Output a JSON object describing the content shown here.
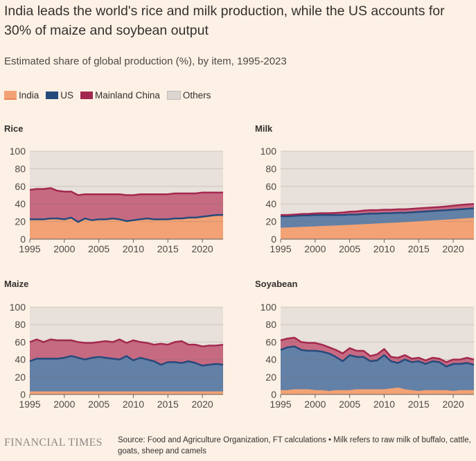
{
  "title": "India leads the world's rice and milk production, while the US accounts for 30% of maize and soybean output",
  "subtitle": "Estimated share of global production (%), by item, 1995-2023",
  "legend": [
    {
      "label": "India",
      "color": "#f2a274",
      "line": "#f2a274"
    },
    {
      "label": "US",
      "color": "#6380a6",
      "line": "#264a7c"
    },
    {
      "label": "Mainland China",
      "color": "#c66a82",
      "line": "#a3284f"
    },
    {
      "label": "Others",
      "color": "#e8e0da",
      "line": "#e8e0da"
    }
  ],
  "footer": {
    "logo": "FINANCIAL TIMES",
    "source": "Source: Food and Agriculture Organization, FT calculations • Milk refers to raw milk of buffalo, cattle, goats, sheep and camels"
  },
  "chart_data": [
    {
      "type": "area",
      "stacked": true,
      "title": "Rice",
      "x_start": 1995,
      "x_end": 2023,
      "ylim": [
        0,
        100
      ],
      "yticks": [
        "0",
        "20",
        "40",
        "60",
        "80",
        "100"
      ],
      "xticks": [
        "1995",
        "2000",
        "2005",
        "2010",
        "2015",
        "2020"
      ],
      "series": [
        {
          "name": "India",
          "values": [
            21,
            21,
            21,
            22,
            22,
            21,
            23,
            18,
            22,
            20,
            21,
            21,
            22,
            21,
            19,
            20,
            21,
            22,
            21,
            21,
            21,
            22,
            22,
            23,
            23,
            24,
            25,
            26,
            26
          ]
        },
        {
          "name": "US",
          "values": [
            1.5,
            1.5,
            1.5,
            1.5,
            1.5,
            1.5,
            1.5,
            1.5,
            1.5,
            1.5,
            1.5,
            1.5,
            1.5,
            1.5,
            1.5,
            1.5,
            1.5,
            1.5,
            1.5,
            1.5,
            1.5,
            1.5,
            1.5,
            1.5,
            1.5,
            1.5,
            1.5,
            1.5,
            1.5
          ]
        },
        {
          "name": "Mainland China",
          "values": [
            33.5,
            34.5,
            34.5,
            34.5,
            31.5,
            31.5,
            29.5,
            30.5,
            27.5,
            29.5,
            28.5,
            28.5,
            27.5,
            28.5,
            29.5,
            28.5,
            28.5,
            27.5,
            28.5,
            28.5,
            28.5,
            28.5,
            28.5,
            27.5,
            27.5,
            27.5,
            26.5,
            25.5,
            25.5
          ]
        }
      ]
    },
    {
      "type": "area",
      "stacked": true,
      "title": "Milk",
      "x_start": 1995,
      "x_end": 2023,
      "ylim": [
        0,
        100
      ],
      "yticks": [
        "0",
        "20",
        "40",
        "60",
        "80",
        "100"
      ],
      "xticks": [
        "1995",
        "2000",
        "2005",
        "2010",
        "2015",
        "2020"
      ],
      "series": [
        {
          "name": "India",
          "values": [
            12,
            12.3,
            12.6,
            13,
            13.3,
            13.6,
            14,
            14.3,
            14.6,
            15,
            15.3,
            15.7,
            16,
            16.4,
            16.8,
            17.2,
            17.6,
            18,
            18.4,
            18.8,
            19.3,
            19.8,
            20.3,
            20.8,
            21.3,
            21.8,
            22.3,
            22.8,
            23.3
          ]
        },
        {
          "name": "US",
          "values": [
            14,
            13.7,
            13.9,
            14,
            13.7,
            13.9,
            13.5,
            13.2,
            12.9,
            12.5,
            12.7,
            12.3,
            12.5,
            12.6,
            12.2,
            12.3,
            11.9,
            12,
            11.6,
            11.7,
            11.7,
            11.7,
            11.7,
            11.7,
            11.7,
            11.7,
            11.7,
            11.7,
            11.7
          ]
        },
        {
          "name": "Mainland China",
          "values": [
            1.5,
            1.5,
            1.5,
            1.5,
            1.7,
            1.7,
            2,
            2,
            2.3,
            2.8,
            3.2,
            3.5,
            4,
            4,
            4,
            4,
            4,
            4,
            4,
            4,
            4,
            4,
            4,
            4,
            4.2,
            4.5,
            4.8,
            5,
            5
          ]
        }
      ]
    },
    {
      "type": "area",
      "stacked": true,
      "title": "Maize",
      "x_start": 1995,
      "x_end": 2023,
      "ylim": [
        0,
        100
      ],
      "yticks": [
        "0",
        "20",
        "40",
        "60",
        "80",
        "100"
      ],
      "xticks": [
        "1995",
        "2000",
        "2005",
        "2010",
        "2015",
        "2020"
      ],
      "series": [
        {
          "name": "India",
          "values": [
            2.5,
            2.5,
            2.5,
            2.5,
            2.5,
            2.5,
            2.5,
            2.5,
            2.5,
            2.5,
            2.5,
            2.5,
            2.5,
            2.5,
            2.5,
            2.5,
            2.5,
            2.5,
            2.5,
            2.5,
            2.5,
            2.5,
            2.5,
            2.5,
            2.5,
            2.5,
            2.5,
            2.5,
            2.5
          ]
        },
        {
          "name": "US",
          "values": [
            35.5,
            38.5,
            38.5,
            38.5,
            38.5,
            39.5,
            41.5,
            39.5,
            37.5,
            39.5,
            40.5,
            39.5,
            38.5,
            37.5,
            41.5,
            36.5,
            39.5,
            37.5,
            35.5,
            31.5,
            34.5,
            34.5,
            33.5,
            35.5,
            33.5,
            30.5,
            31.5,
            32.5,
            31.5
          ]
        },
        {
          "name": "Mainland China",
          "values": [
            22,
            22,
            19,
            22,
            21,
            20,
            18,
            18,
            19,
            17,
            17,
            19,
            19,
            23,
            15,
            23,
            18,
            19,
            19,
            24,
            20,
            23,
            25,
            19,
            21,
            22,
            22,
            21,
            23
          ]
        }
      ]
    },
    {
      "type": "area",
      "stacked": true,
      "title": "Soyabean",
      "x_start": 1995,
      "x_end": 2023,
      "ylim": [
        0,
        100
      ],
      "yticks": [
        "0",
        "20",
        "40",
        "60",
        "80",
        "100"
      ],
      "xticks": [
        "1995",
        "2000",
        "2005",
        "2010",
        "2015",
        "2020"
      ],
      "series": [
        {
          "name": "India",
          "values": [
            4,
            4,
            5,
            5,
            5,
            4,
            4,
            3,
            4,
            4,
            4,
            5,
            5,
            5,
            5,
            5,
            6,
            7,
            5,
            4,
            3,
            4,
            4,
            4,
            4,
            3,
            4,
            4,
            4
          ]
        },
        {
          "name": "US",
          "values": [
            47,
            50,
            50,
            46,
            45,
            46,
            45,
            44,
            39,
            34,
            41,
            38,
            38,
            33,
            34,
            40,
            32,
            29,
            35,
            33,
            35,
            31,
            34,
            33,
            28,
            32,
            31,
            32,
            30
          ]
        },
        {
          "name": "Mainland China",
          "values": [
            11,
            10,
            10,
            9,
            9,
            9,
            8,
            7,
            8,
            9,
            8,
            7,
            7,
            6,
            7,
            7,
            5,
            6,
            5,
            4,
            4,
            4,
            4,
            4,
            5,
            5,
            5,
            6,
            6
          ]
        }
      ]
    }
  ]
}
